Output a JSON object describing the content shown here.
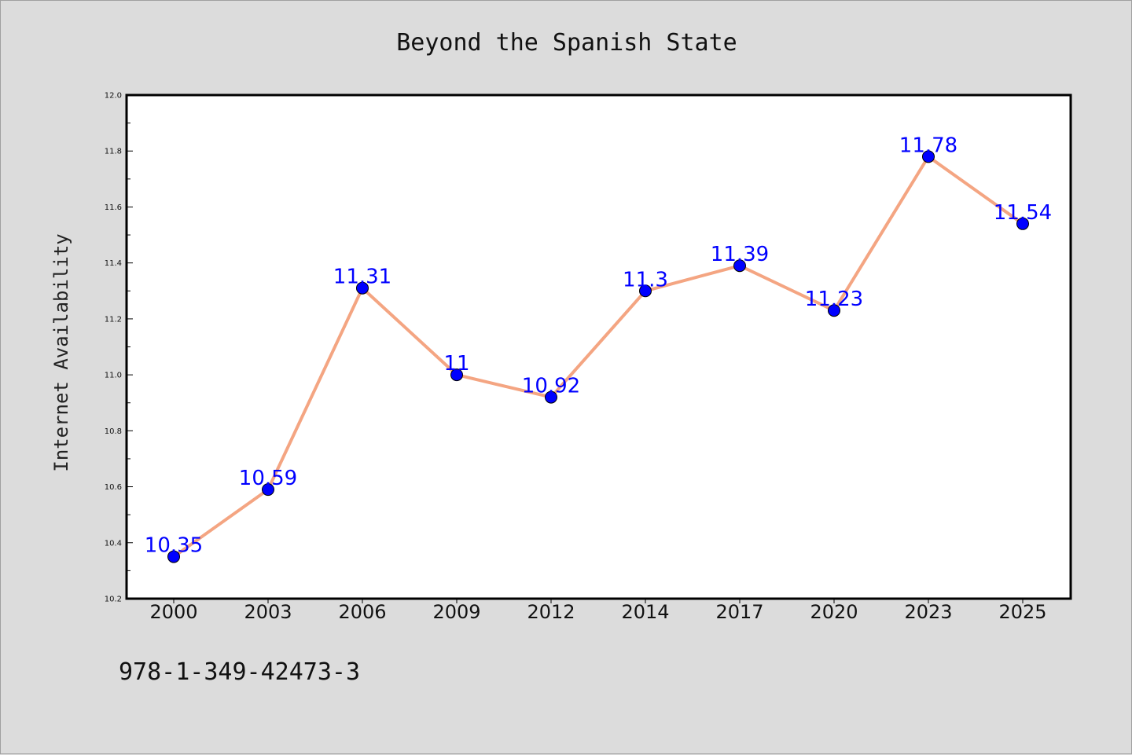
{
  "footer_text": "978-1-349-42473-3",
  "colors": {
    "background": "#dcdcdc",
    "plot_background": "#ffffff",
    "line": "#f4a582",
    "marker": "#0000ff",
    "data_label": "#0000ff"
  },
  "chart_data": {
    "type": "line",
    "title": "Beyond the Spanish State",
    "xlabel": "",
    "ylabel": "Internet Availability",
    "categories": [
      "2000",
      "2003",
      "2006",
      "2009",
      "2012",
      "2014",
      "2017",
      "2020",
      "2023",
      "2025"
    ],
    "series": [
      {
        "values": [
          10.35,
          10.59,
          11.31,
          11,
          10.92,
          11.3,
          11.39,
          11.23,
          11.78,
          11.54
        ],
        "data_labels": [
          "10.35",
          "10.59",
          "11.31",
          "11",
          "10.92",
          "11.3",
          "11.39",
          "11.23",
          "11.78",
          "11.54"
        ]
      }
    ],
    "ylim": [
      10.2,
      12.0
    ],
    "yticks": [
      "10.2",
      "10.4",
      "10.6",
      "10.8",
      "11.0",
      "11.2",
      "11.4",
      "11.6",
      "11.8",
      "12.0"
    ],
    "grid": false,
    "legend": "none"
  }
}
